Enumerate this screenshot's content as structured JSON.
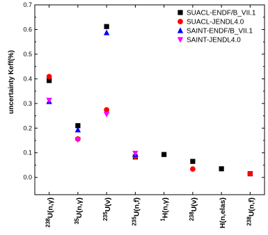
{
  "chart_data": {
    "type": "scatter",
    "ylabel": "uncertainty Keff(%)",
    "ylim": [
      -0.07,
      0.7
    ],
    "yticks": [
      "0.0",
      "0.1",
      "0.2",
      "0.3",
      "0.4",
      "0.5",
      "0.6",
      "0.7"
    ],
    "grid": false,
    "legend_position": "top-right",
    "categories": [
      {
        "sup": "238",
        "rest": "U(n,γ)"
      },
      {
        "sup": "35",
        "rest": "U(n,γ)"
      },
      {
        "sup": "235",
        "rest": "U(ν)"
      },
      {
        "sup": "235",
        "rest": "U(n,f)"
      },
      {
        "sup": "1",
        "rest": "H(n,γ)"
      },
      {
        "sup": "238",
        "rest": "U(ν)"
      },
      {
        "sup": "",
        "rest": "H(n,elas)"
      },
      {
        "sup": "238",
        "rest": "U(n,f)"
      }
    ],
    "series": [
      {
        "name": "SUACL-ENDF/B_VII.1",
        "marker": "square",
        "color": "#000000",
        "values": [
          0.393,
          0.21,
          0.612,
          0.083,
          0.093,
          0.065,
          0.035,
          0.015
        ]
      },
      {
        "name": "SUACL-JENDL4.0",
        "marker": "circle",
        "color": "#ff0000",
        "values": [
          0.409,
          0.156,
          0.274,
          0.085,
          null,
          0.034,
          null,
          0.015
        ]
      },
      {
        "name": "SAINT-ENDF/B_VII.1",
        "marker": "triangle-up",
        "color": "#0000ff",
        "values": [
          0.308,
          0.193,
          0.587,
          0.093,
          null,
          null,
          null,
          null
        ]
      },
      {
        "name": "SAINT-JENDL4.0",
        "marker": "triangle-down",
        "color": "#ff00ff",
        "values": [
          0.313,
          0.153,
          0.256,
          0.098,
          null,
          null,
          null,
          null
        ]
      }
    ]
  }
}
